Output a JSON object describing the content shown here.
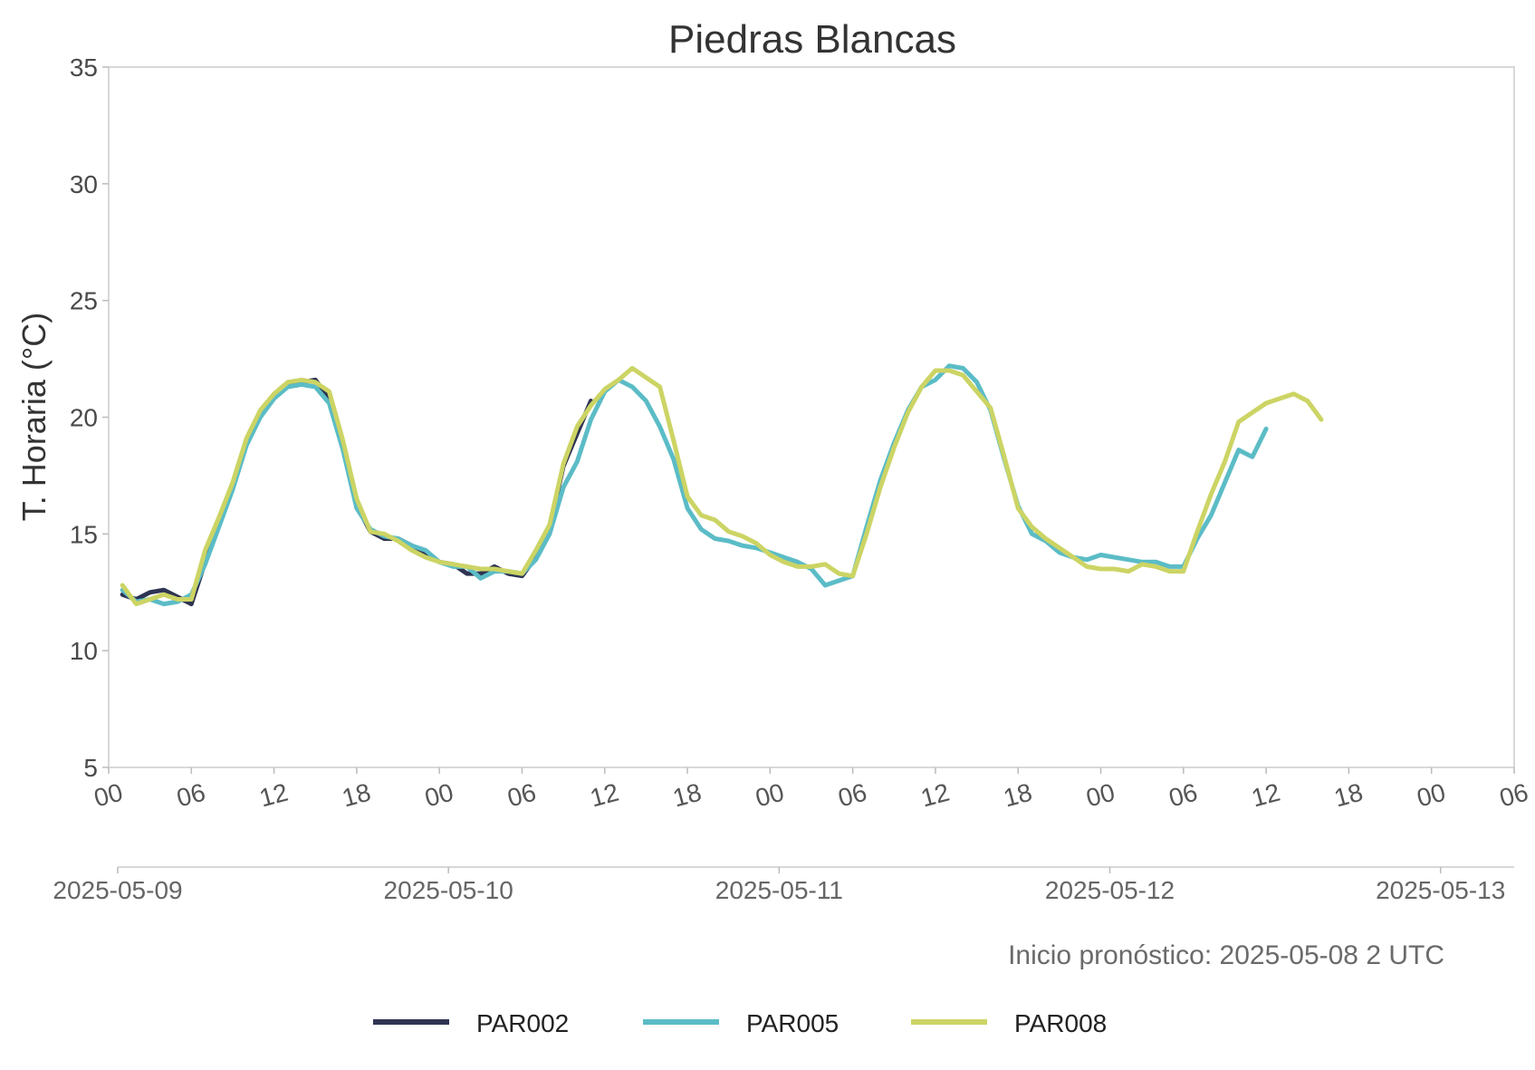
{
  "chart_data": {
    "type": "line",
    "title": "Piedras Blancas",
    "ylabel": "T. Horaria (°C)",
    "ylim": [
      5,
      35
    ],
    "yticks": [
      5,
      10,
      15,
      20,
      25,
      30,
      35
    ],
    "xlim": [
      "2025-05-09 00:00",
      "2025-05-13 06:00"
    ],
    "hour_ticks": [
      "00",
      "06",
      "12",
      "18",
      "00",
      "06",
      "12",
      "18",
      "00",
      "06",
      "12",
      "18",
      "00",
      "06",
      "12",
      "18",
      "00",
      "06"
    ],
    "date_ticks": [
      "2025-05-09",
      "2025-05-10",
      "2025-05-11",
      "2025-05-12",
      "2025-05-13"
    ],
    "annotation": "Inicio pronóstico: 2025-05-08 2 UTC",
    "grid": false,
    "legend_position": "bottom",
    "series": [
      {
        "name": "PAR002",
        "color": "#2e3452",
        "x": [
          "2025-05-09 01:00",
          "2025-05-09 02:00",
          "2025-05-09 03:00",
          "2025-05-09 04:00",
          "2025-05-09 05:00",
          "2025-05-09 06:00",
          "2025-05-09 07:00",
          "2025-05-09 08:00",
          "2025-05-09 09:00",
          "2025-05-09 10:00",
          "2025-05-09 11:00",
          "2025-05-09 12:00",
          "2025-05-09 13:00",
          "2025-05-09 14:00",
          "2025-05-09 15:00",
          "2025-05-09 16:00",
          "2025-05-09 17:00",
          "2025-05-09 18:00",
          "2025-05-09 19:00",
          "2025-05-09 20:00",
          "2025-05-09 21:00",
          "2025-05-09 22:00",
          "2025-05-09 23:00",
          "2025-05-10 00:00",
          "2025-05-10 01:00",
          "2025-05-10 02:00",
          "2025-05-10 03:00",
          "2025-05-10 04:00",
          "2025-05-10 05:00",
          "2025-05-10 06:00",
          "2025-05-10 07:00",
          "2025-05-10 08:00",
          "2025-05-10 09:00",
          "2025-05-10 10:00",
          "2025-05-10 11:00"
        ],
        "y": [
          12.4,
          12.2,
          12.5,
          12.6,
          12.3,
          12.0,
          13.8,
          15.5,
          17.1,
          19.0,
          20.2,
          20.9,
          21.4,
          21.5,
          21.6,
          20.8,
          18.8,
          16.2,
          15.1,
          14.8,
          14.8,
          14.5,
          14.2,
          13.8,
          13.7,
          13.3,
          13.3,
          13.6,
          13.3,
          13.2,
          14.0,
          15.3,
          17.9,
          19.3,
          20.7
        ]
      },
      {
        "name": "PAR005",
        "color": "#5bbcc6",
        "x": [
          "2025-05-09 01:00",
          "2025-05-09 02:00",
          "2025-05-09 03:00",
          "2025-05-09 04:00",
          "2025-05-09 05:00",
          "2025-05-09 06:00",
          "2025-05-09 07:00",
          "2025-05-09 08:00",
          "2025-05-09 09:00",
          "2025-05-09 10:00",
          "2025-05-09 11:00",
          "2025-05-09 12:00",
          "2025-05-09 13:00",
          "2025-05-09 14:00",
          "2025-05-09 15:00",
          "2025-05-09 16:00",
          "2025-05-09 17:00",
          "2025-05-09 18:00",
          "2025-05-09 19:00",
          "2025-05-09 20:00",
          "2025-05-09 21:00",
          "2025-05-09 22:00",
          "2025-05-09 23:00",
          "2025-05-10 00:00",
          "2025-05-10 01:00",
          "2025-05-10 02:00",
          "2025-05-10 03:00",
          "2025-05-10 04:00",
          "2025-05-10 05:00",
          "2025-05-10 06:00",
          "2025-05-10 07:00",
          "2025-05-10 08:00",
          "2025-05-10 09:00",
          "2025-05-10 10:00",
          "2025-05-10 11:00",
          "2025-05-10 12:00",
          "2025-05-10 13:00",
          "2025-05-10 14:00",
          "2025-05-10 15:00",
          "2025-05-10 16:00",
          "2025-05-10 17:00",
          "2025-05-10 18:00",
          "2025-05-10 19:00",
          "2025-05-10 20:00",
          "2025-05-10 21:00",
          "2025-05-10 22:00",
          "2025-05-10 23:00",
          "2025-05-11 00:00",
          "2025-05-11 01:00",
          "2025-05-11 02:00",
          "2025-05-11 03:00",
          "2025-05-11 04:00",
          "2025-05-11 05:00",
          "2025-05-11 06:00",
          "2025-05-11 07:00",
          "2025-05-11 08:00",
          "2025-05-11 09:00",
          "2025-05-11 10:00",
          "2025-05-11 11:00",
          "2025-05-11 12:00",
          "2025-05-11 13:00",
          "2025-05-11 14:00",
          "2025-05-11 15:00",
          "2025-05-11 16:00",
          "2025-05-11 17:00",
          "2025-05-11 18:00",
          "2025-05-11 19:00",
          "2025-05-11 20:00",
          "2025-05-11 21:00",
          "2025-05-11 22:00",
          "2025-05-11 23:00",
          "2025-05-12 00:00",
          "2025-05-12 01:00",
          "2025-05-12 02:00",
          "2025-05-12 03:00",
          "2025-05-12 04:00",
          "2025-05-12 05:00",
          "2025-05-12 06:00",
          "2025-05-12 07:00",
          "2025-05-12 08:00",
          "2025-05-12 09:00",
          "2025-05-12 10:00",
          "2025-05-12 11:00",
          "2025-05-12 12:00"
        ],
        "y": [
          12.6,
          12.1,
          12.2,
          12.0,
          12.1,
          12.4,
          13.7,
          15.3,
          16.9,
          18.8,
          20.0,
          20.8,
          21.3,
          21.4,
          21.3,
          20.6,
          18.6,
          16.1,
          15.2,
          14.9,
          14.8,
          14.5,
          14.3,
          13.8,
          13.6,
          13.6,
          13.1,
          13.4,
          13.4,
          13.3,
          13.9,
          15.0,
          17.0,
          18.1,
          19.9,
          21.1,
          21.6,
          21.3,
          20.7,
          19.6,
          18.2,
          16.1,
          15.2,
          14.8,
          14.7,
          14.5,
          14.4,
          14.2,
          14.0,
          13.8,
          13.5,
          12.8,
          13.0,
          13.2,
          15.3,
          17.3,
          18.9,
          20.3,
          21.3,
          21.6,
          22.2,
          22.1,
          21.5,
          20.3,
          18.2,
          16.2,
          15.0,
          14.7,
          14.2,
          14.0,
          13.9,
          14.1,
          14.0,
          13.9,
          13.8,
          13.8,
          13.6,
          13.6,
          14.8,
          15.8,
          17.2,
          18.6,
          18.3,
          19.5
        ]
      },
      {
        "name": "PAR008",
        "color": "#ccd464",
        "x": [
          "2025-05-09 01:00",
          "2025-05-09 02:00",
          "2025-05-09 03:00",
          "2025-05-09 04:00",
          "2025-05-09 05:00",
          "2025-05-09 06:00",
          "2025-05-09 07:00",
          "2025-05-09 08:00",
          "2025-05-09 09:00",
          "2025-05-09 10:00",
          "2025-05-09 11:00",
          "2025-05-09 12:00",
          "2025-05-09 13:00",
          "2025-05-09 14:00",
          "2025-05-09 15:00",
          "2025-05-09 16:00",
          "2025-05-09 17:00",
          "2025-05-09 18:00",
          "2025-05-09 19:00",
          "2025-05-09 20:00",
          "2025-05-09 21:00",
          "2025-05-09 22:00",
          "2025-05-09 23:00",
          "2025-05-10 00:00",
          "2025-05-10 01:00",
          "2025-05-10 02:00",
          "2025-05-10 03:00",
          "2025-05-10 04:00",
          "2025-05-10 05:00",
          "2025-05-10 06:00",
          "2025-05-10 07:00",
          "2025-05-10 08:00",
          "2025-05-10 09:00",
          "2025-05-10 10:00",
          "2025-05-10 11:00",
          "2025-05-10 12:00",
          "2025-05-10 13:00",
          "2025-05-10 14:00",
          "2025-05-10 15:00",
          "2025-05-10 16:00",
          "2025-05-10 17:00",
          "2025-05-10 18:00",
          "2025-05-10 19:00",
          "2025-05-10 20:00",
          "2025-05-10 21:00",
          "2025-05-10 22:00",
          "2025-05-10 23:00",
          "2025-05-11 00:00",
          "2025-05-11 01:00",
          "2025-05-11 02:00",
          "2025-05-11 03:00",
          "2025-05-11 04:00",
          "2025-05-11 05:00",
          "2025-05-11 06:00",
          "2025-05-11 07:00",
          "2025-05-11 08:00",
          "2025-05-11 09:00",
          "2025-05-11 10:00",
          "2025-05-11 11:00",
          "2025-05-11 12:00",
          "2025-05-11 13:00",
          "2025-05-11 14:00",
          "2025-05-11 15:00",
          "2025-05-11 16:00",
          "2025-05-11 17:00",
          "2025-05-11 18:00",
          "2025-05-11 19:00",
          "2025-05-11 20:00",
          "2025-05-11 21:00",
          "2025-05-11 22:00",
          "2025-05-11 23:00",
          "2025-05-12 00:00",
          "2025-05-12 01:00",
          "2025-05-12 02:00",
          "2025-05-12 03:00",
          "2025-05-12 04:00",
          "2025-05-12 05:00",
          "2025-05-12 06:00",
          "2025-05-12 07:00",
          "2025-05-12 08:00",
          "2025-05-12 09:00",
          "2025-05-12 10:00",
          "2025-05-12 11:00",
          "2025-05-12 12:00",
          "2025-05-12 13:00",
          "2025-05-12 14:00",
          "2025-05-12 15:00",
          "2025-05-12 16:00"
        ],
        "y": [
          12.8,
          12.0,
          12.2,
          12.4,
          12.2,
          12.2,
          14.3,
          15.7,
          17.2,
          19.1,
          20.3,
          21.0,
          21.5,
          21.6,
          21.5,
          21.1,
          19.0,
          16.5,
          15.1,
          15.0,
          14.7,
          14.3,
          14.0,
          13.8,
          13.7,
          13.6,
          13.5,
          13.5,
          13.4,
          13.3,
          14.3,
          15.4,
          18.0,
          19.6,
          20.5,
          21.2,
          21.6,
          22.1,
          21.7,
          21.3,
          19.0,
          16.6,
          15.8,
          15.6,
          15.1,
          14.9,
          14.6,
          14.1,
          13.8,
          13.6,
          13.6,
          13.7,
          13.3,
          13.2,
          15.0,
          17.0,
          18.7,
          20.2,
          21.3,
          22.0,
          22.0,
          21.8,
          21.1,
          20.4,
          18.3,
          16.1,
          15.3,
          14.8,
          14.4,
          14.0,
          13.6,
          13.5,
          13.5,
          13.4,
          13.7,
          13.6,
          13.4,
          13.4,
          15.1,
          16.7,
          18.1,
          19.8,
          20.2,
          20.6,
          20.8,
          21.0,
          20.7,
          19.9
        ]
      }
    ]
  }
}
